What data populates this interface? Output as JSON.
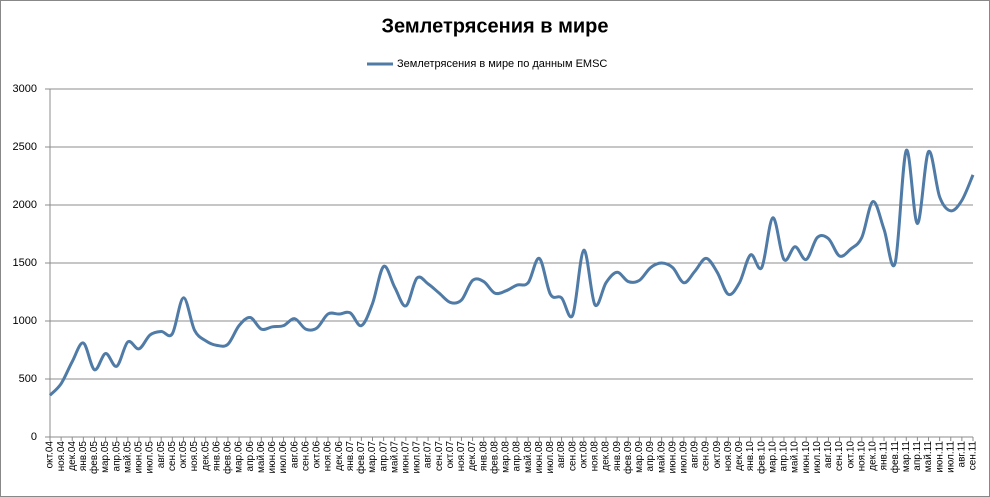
{
  "chart_data": {
    "type": "line",
    "title": "Землетрясения в мире",
    "categories": [
      "окт.04",
      "ноя.04",
      "дек.04",
      "янв.05",
      "фев.05",
      "мар.05",
      "апр.05",
      "май.05",
      "июн.05",
      "июл.05",
      "авг.05",
      "сен.05",
      "окт.05",
      "ноя.05",
      "дек.05",
      "янв.06",
      "фев.06",
      "мар.06",
      "апр.06",
      "май.06",
      "июн.06",
      "июл.06",
      "авг.06",
      "сен.06",
      "окт.06",
      "ноя.06",
      "дек.06",
      "янв.07",
      "фев.07",
      "мар.07",
      "апр.07",
      "май.07",
      "июн.07",
      "июл.07",
      "авг.07",
      "сен.07",
      "окт.07",
      "ноя.07",
      "дек.07",
      "янв.08",
      "фев.08",
      "мар.08",
      "апр.08",
      "май.08",
      "июн.08",
      "июл.08",
      "авг.08",
      "сен.08",
      "окт.08",
      "ноя.08",
      "дек.08",
      "янв.09",
      "фев.09",
      "мар.09",
      "апр.09",
      "май.09",
      "июн.09",
      "июл.09",
      "авг.09",
      "сен.09",
      "окт.09",
      "ноя.09",
      "дек.09",
      "янв.10",
      "фев.10",
      "мар.10",
      "апр.10",
      "май.10",
      "июн.10",
      "июл.10",
      "авг.10",
      "сен.10",
      "окт.10",
      "ноя.10",
      "дек.10",
      "янв.11",
      "фев.11",
      "мар.11",
      "апр.11",
      "май.11",
      "июн.11",
      "июл.11",
      "авг.11",
      "сен.11"
    ],
    "series": [
      {
        "name": "Землетрясения в мире по данным  EMSC",
        "color": "#4f7ba6",
        "values": [
          360,
          460,
          650,
          810,
          580,
          720,
          610,
          820,
          760,
          880,
          910,
          890,
          1200,
          920,
          830,
          790,
          800,
          960,
          1030,
          930,
          950,
          960,
          1020,
          930,
          940,
          1060,
          1060,
          1070,
          960,
          1150,
          1470,
          1290,
          1130,
          1370,
          1320,
          1240,
          1160,
          1180,
          1350,
          1340,
          1240,
          1260,
          1310,
          1330,
          1540,
          1230,
          1200,
          1050,
          1610,
          1140,
          1330,
          1420,
          1340,
          1350,
          1460,
          1500,
          1460,
          1330,
          1430,
          1540,
          1420,
          1230,
          1330,
          1570,
          1460,
          1890,
          1530,
          1640,
          1530,
          1720,
          1710,
          1560,
          1620,
          1720,
          2030,
          1790,
          1500,
          2470,
          1840,
          2460,
          2070,
          1950,
          2040,
          2260
        ]
      }
    ],
    "ylim": [
      0,
      3000
    ],
    "yticks": [
      0,
      500,
      1000,
      1500,
      2000,
      2500,
      3000
    ],
    "grid": true,
    "legend": "top"
  }
}
